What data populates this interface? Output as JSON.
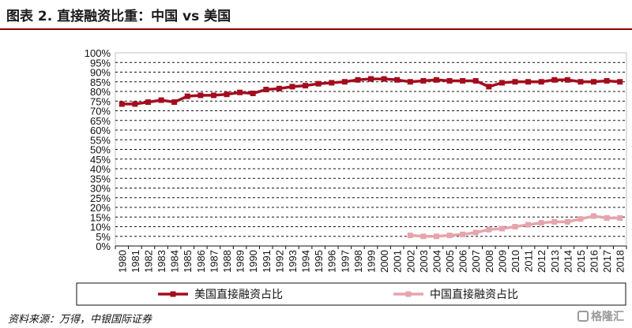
{
  "header": {
    "title": "图表 2. 直接融资比重：中国 vs 美国"
  },
  "chart_data": {
    "type": "line",
    "title": "图表 2. 直接融资比重：中国 vs 美国",
    "xlabel": "",
    "ylabel": "",
    "ylim": [
      0,
      100
    ],
    "y_ticks": [
      "0%",
      "5%",
      "10%",
      "15%",
      "20%",
      "25%",
      "30%",
      "35%",
      "40%",
      "45%",
      "50%",
      "55%",
      "60%",
      "65%",
      "70%",
      "75%",
      "80%",
      "85%",
      "90%",
      "95%",
      "100%"
    ],
    "categories": [
      "1980",
      "1981",
      "1982",
      "1983",
      "1984",
      "1985",
      "1986",
      "1987",
      "1988",
      "1989",
      "1990",
      "1991",
      "1992",
      "1993",
      "1994",
      "1995",
      "1996",
      "1997",
      "1998",
      "1999",
      "2000",
      "2001",
      "2002",
      "2003",
      "2004",
      "2005",
      "2006",
      "2007",
      "2008",
      "2009",
      "2010",
      "2011",
      "2012",
      "2013",
      "2014",
      "2015",
      "2016",
      "2017",
      "2018"
    ],
    "grid": true,
    "legend_position": "bottom",
    "series": [
      {
        "name": "美国直接融资占比",
        "color": "#a30d1e",
        "marker": "square",
        "values": [
          73.5,
          73.5,
          74.5,
          75.5,
          74.5,
          77.5,
          78,
          78,
          78.5,
          79.5,
          79,
          81,
          81.5,
          82.5,
          83,
          84,
          84.5,
          85,
          86,
          86.5,
          86.5,
          86,
          85,
          85.5,
          86,
          85.5,
          85.5,
          85.5,
          82.5,
          84.5,
          85,
          85,
          85,
          86,
          86,
          85,
          85,
          85.5,
          85
        ]
      },
      {
        "name": "中国直接融资占比",
        "color": "#e6a4ac",
        "marker": "square",
        "values": [
          null,
          null,
          null,
          null,
          null,
          null,
          null,
          null,
          null,
          null,
          null,
          null,
          null,
          null,
          null,
          null,
          null,
          null,
          null,
          null,
          null,
          null,
          5.5,
          5,
          5,
          5.5,
          6,
          7,
          8.5,
          9,
          10,
          11,
          12,
          12.5,
          12.5,
          14,
          15.5,
          14.5,
          14.5
        ]
      }
    ]
  },
  "footer": {
    "source": "资料来源：万得，中银国际证券",
    "watermark": "格隆汇"
  },
  "icons": {
    "watermark_logo": "gelonghui-logo-icon"
  }
}
